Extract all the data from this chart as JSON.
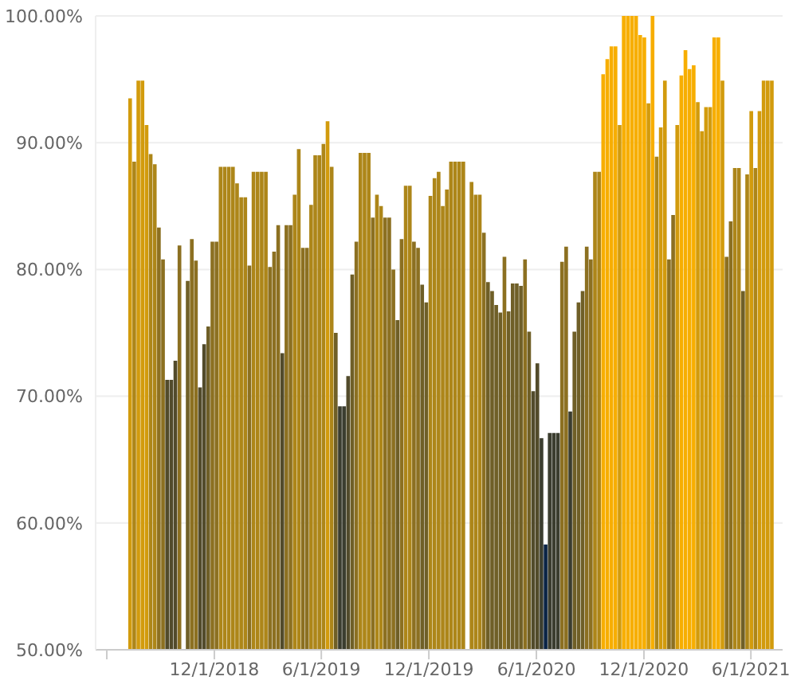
{
  "chart_data": {
    "type": "bar",
    "x": [
      "2018-07-11",
      "2018-07-18",
      "2018-07-25",
      "2018-08-01",
      "2018-08-08",
      "2018-08-15",
      "2018-08-22",
      "2018-08-29",
      "2018-09-05",
      "2018-09-12",
      "2018-09-19",
      "2018-09-26",
      "2018-10-03",
      "2018-10-10",
      "2018-10-17",
      "2018-10-24",
      "2018-10-31",
      "2018-11-07",
      "2018-11-14",
      "2018-11-21",
      "2018-11-28",
      "2018-12-05",
      "2018-12-12",
      "2018-12-19",
      "2018-12-26",
      "2019-01-02",
      "2019-01-09",
      "2019-01-16",
      "2019-01-23",
      "2019-01-30",
      "2019-02-06",
      "2019-02-13",
      "2019-02-20",
      "2019-02-27",
      "2019-03-06",
      "2019-03-13",
      "2019-03-20",
      "2019-03-27",
      "2019-04-03",
      "2019-04-10",
      "2019-04-17",
      "2019-04-24",
      "2019-05-01",
      "2019-05-08",
      "2019-05-15",
      "2019-05-22",
      "2019-05-29",
      "2019-06-05",
      "2019-06-12",
      "2019-06-19",
      "2019-06-26",
      "2019-07-03",
      "2019-07-10",
      "2019-07-17",
      "2019-07-24",
      "2019-07-31",
      "2019-08-07",
      "2019-08-14",
      "2019-08-21",
      "2019-08-28",
      "2019-09-04",
      "2019-09-11",
      "2019-09-18",
      "2019-09-25",
      "2019-10-02",
      "2019-10-09",
      "2019-10-16",
      "2019-10-23",
      "2019-10-30",
      "2019-11-06",
      "2019-11-13",
      "2019-11-20",
      "2019-11-27",
      "2019-12-04",
      "2019-12-11",
      "2019-12-18",
      "2019-12-25",
      "2020-01-01",
      "2020-01-08",
      "2020-01-15",
      "2020-01-22",
      "2020-01-29",
      "2020-02-05",
      "2020-02-12",
      "2020-02-19",
      "2020-02-26",
      "2020-03-04",
      "2020-03-11",
      "2020-03-18",
      "2020-03-25",
      "2020-04-01",
      "2020-04-08",
      "2020-04-15",
      "2020-04-22",
      "2020-04-29",
      "2020-05-06",
      "2020-05-13",
      "2020-05-20",
      "2020-05-27",
      "2020-06-03",
      "2020-06-10",
      "2020-06-17",
      "2020-06-24",
      "2020-07-01",
      "2020-07-08",
      "2020-07-15",
      "2020-07-22",
      "2020-07-29",
      "2020-08-05",
      "2020-08-12",
      "2020-08-19",
      "2020-08-26",
      "2020-09-02",
      "2020-09-09",
      "2020-09-16",
      "2020-09-23",
      "2020-09-30",
      "2020-10-07",
      "2020-10-14",
      "2020-10-21",
      "2020-10-28",
      "2020-11-04",
      "2020-11-11",
      "2020-11-18",
      "2020-11-25",
      "2020-12-02",
      "2020-12-09",
      "2020-12-16",
      "2020-12-23",
      "2020-12-30",
      "2021-01-06",
      "2021-01-13",
      "2021-01-20",
      "2021-01-27",
      "2021-02-03",
      "2021-02-10",
      "2021-02-17",
      "2021-02-24",
      "2021-03-03",
      "2021-03-10",
      "2021-03-17",
      "2021-03-24",
      "2021-03-31",
      "2021-04-07",
      "2021-04-14",
      "2021-04-21",
      "2021-04-28",
      "2021-05-05",
      "2021-05-12",
      "2021-05-19",
      "2021-05-26",
      "2021-06-02",
      "2021-06-09",
      "2021-06-16",
      "2021-06-23",
      "2021-06-30",
      "2021-07-07"
    ],
    "values": [
      93.5,
      88.5,
      94.9,
      94.9,
      91.4,
      89.1,
      88.3,
      83.3,
      80.8,
      71.3,
      71.3,
      72.8,
      81.9,
      null,
      79.1,
      82.4,
      80.7,
      70.7,
      74.1,
      75.5,
      82.2,
      82.2,
      88.1,
      88.1,
      88.1,
      88.1,
      86.8,
      85.7,
      85.7,
      80.3,
      87.7,
      87.7,
      87.7,
      87.7,
      80.2,
      81.4,
      83.5,
      73.4,
      83.5,
      83.5,
      85.9,
      89.5,
      81.7,
      81.7,
      85.1,
      89.0,
      89.0,
      89.9,
      91.7,
      88.1,
      75.0,
      69.2,
      69.2,
      71.6,
      79.6,
      82.2,
      89.2,
      89.2,
      89.2,
      84.1,
      85.9,
      85.0,
      84.1,
      84.1,
      80.0,
      76.0,
      82.4,
      86.6,
      86.6,
      82.2,
      81.7,
      78.8,
      77.4,
      85.8,
      87.2,
      87.7,
      85.0,
      86.3,
      88.5,
      88.5,
      88.5,
      88.5,
      null,
      86.9,
      85.9,
      85.9,
      82.9,
      79.0,
      78.3,
      77.2,
      76.6,
      81.0,
      76.7,
      78.9,
      78.9,
      78.7,
      80.8,
      75.1,
      70.4,
      72.6,
      66.7,
      58.3,
      67.1,
      67.1,
      67.1,
      80.6,
      81.8,
      68.8,
      75.1,
      77.4,
      78.3,
      81.8,
      80.8,
      87.7,
      87.7,
      95.4,
      96.6,
      97.6,
      97.6,
      91.4,
      100,
      100,
      100,
      100,
      98.5,
      98.3,
      93.1,
      100,
      88.9,
      91.2,
      94.9,
      80.8,
      84.3,
      91.4,
      95.3,
      97.3,
      95.8,
      96.1,
      93.2,
      90.9,
      92.8,
      92.8,
      98.3,
      98.3,
      94.9,
      81.0,
      83.8,
      88.0,
      88.0,
      78.3,
      87.5,
      92.5,
      88.0,
      92.5,
      94.9,
      94.9,
      94.9
    ],
    "colors": [
      "#d29b0d",
      "#ad8619",
      "#d29b0d",
      "#d29b0d",
      "#d29b0d",
      "#ad8619",
      "#ad8619",
      "#8c7021",
      "#8c7021",
      "#524b2b",
      "#524b2b",
      "#524b2b",
      "#8c7021",
      null,
      "#6f5f27",
      "#8c7021",
      "#8c7021",
      "#524b2b",
      "#524b2b",
      "#6f5f27",
      "#8c7021",
      "#8c7021",
      "#ad8619",
      "#ad8619",
      "#ad8619",
      "#ad8619",
      "#ad8619",
      "#ad8619",
      "#ad8619",
      "#8c7021",
      "#ad8619",
      "#ad8619",
      "#ad8619",
      "#ad8619",
      "#8c7021",
      "#8c7021",
      "#8c7021",
      "#524b2b",
      "#8c7021",
      "#8c7021",
      "#ad8619",
      "#ad8619",
      "#8c7021",
      "#8c7021",
      "#ad8619",
      "#ad8619",
      "#ad8619",
      "#ad8619",
      "#d29b0d",
      "#ad8619",
      "#6f5f27",
      "#3b3d2f",
      "#3b3d2f",
      "#524b2b",
      "#6f5f27",
      "#8c7021",
      "#ad8619",
      "#ad8619",
      "#ad8619",
      "#8c7021",
      "#ad8619",
      "#ad8619",
      "#8c7021",
      "#8c7021",
      "#8c7021",
      "#6f5f27",
      "#8c7021",
      "#ad8619",
      "#ad8619",
      "#8c7021",
      "#8c7021",
      "#6f5f27",
      "#6f5f27",
      "#ad8619",
      "#ad8619",
      "#ad8619",
      "#ad8619",
      "#ad8619",
      "#ad8619",
      "#ad8619",
      "#ad8619",
      "#ad8619",
      null,
      "#ad8619",
      "#ad8619",
      "#ad8619",
      "#8c7021",
      "#6f5f27",
      "#6f5f27",
      "#6f5f27",
      "#6f5f27",
      "#8c7021",
      "#6f5f27",
      "#6f5f27",
      "#6f5f27",
      "#6f5f27",
      "#8c7021",
      "#6f5f27",
      "#524b2b",
      "#524b2b",
      "#3b3d2f",
      "#0b2446",
      "#3b3d2f",
      "#3b3d2f",
      "#3b3d2f",
      "#8c7021",
      "#8c7021",
      "#3b3d2f",
      "#6f5f27",
      "#6f5f27",
      "#6f5f27",
      "#8c7021",
      "#8c7021",
      "#ad8619",
      "#ad8619",
      "#f7ae00",
      "#f7ae00",
      "#f7ae00",
      "#f7ae00",
      "#d29b0d",
      "#f7ae00",
      "#f7ae00",
      "#f7ae00",
      "#f7ae00",
      "#f7ae00",
      "#f7ae00",
      "#d29b0d",
      "#f7ae00",
      "#ad8619",
      "#d29b0d",
      "#d29b0d",
      "#8c7021",
      "#8c7021",
      "#d29b0d",
      "#f7ae00",
      "#f7ae00",
      "#f7ae00",
      "#f7ae00",
      "#d29b0d",
      "#d29b0d",
      "#d29b0d",
      "#d29b0d",
      "#f7ae00",
      "#f7ae00",
      "#d29b0d",
      "#8c7021",
      "#8c7021",
      "#ad8619",
      "#ad8619",
      "#6f5f27",
      "#ad8619",
      "#d29b0d",
      "#ad8619",
      "#d29b0d",
      "#d29b0d",
      "#d29b0d",
      "#d29b0d"
    ],
    "xlim": [
      "2018-05-13",
      "2021-07-25"
    ],
    "xticks": [
      {
        "value": "2018-06-01",
        "label": null
      },
      {
        "value": "2018-12-01",
        "label": "12/1/2018"
      },
      {
        "value": "2019-06-01",
        "label": "6/1/2019"
      },
      {
        "value": "2019-12-01",
        "label": "12/1/2019"
      },
      {
        "value": "2020-06-01",
        "label": "6/1/2020"
      },
      {
        "value": "2020-12-01",
        "label": "12/1/2020"
      },
      {
        "value": "2021-06-01",
        "label": "6/1/2021"
      }
    ],
    "ylim": [
      50,
      100
    ],
    "yticks": [
      {
        "value": 50,
        "label": "50.00%"
      },
      {
        "value": 60,
        "label": "60.00%"
      },
      {
        "value": 70,
        "label": "70.00%"
      },
      {
        "value": 80,
        "label": "80.00%"
      },
      {
        "value": 90,
        "label": "90.00%"
      },
      {
        "value": 100,
        "label": "100.00%"
      }
    ],
    "grid": "y"
  }
}
